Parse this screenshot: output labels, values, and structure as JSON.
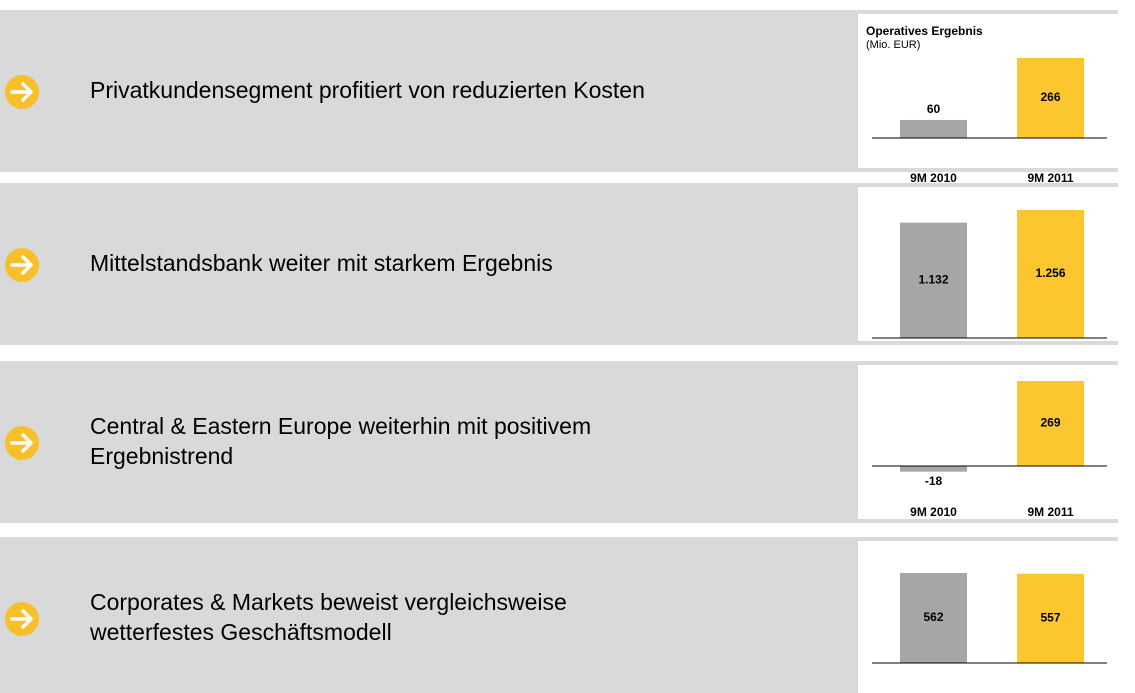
{
  "chart_data": [
    {
      "type": "bar",
      "headline": [
        "Privatkundensegment profitiert von reduzierten Kosten"
      ],
      "title": "Operatives Ergebnis",
      "subtitle": "(Mio. EUR)",
      "categories": [
        "9M 2010",
        "9M 2011"
      ],
      "values": [
        60,
        266
      ],
      "colors": [
        "#a6a6a6",
        "#fcc72e"
      ]
    },
    {
      "type": "bar",
      "headline": [
        "Mittelstandsbank weiter mit starkem Ergebnis"
      ],
      "categories": [
        "9M 2010",
        "9M 2011"
      ],
      "values": [
        1132,
        1256
      ],
      "value_labels": [
        "1.132",
        "1.256"
      ],
      "colors": [
        "#a6a6a6",
        "#fcc72e"
      ]
    },
    {
      "type": "bar",
      "headline": [
        "Central & Eastern Europe weiterhin mit positivem",
        "Ergebnistrend"
      ],
      "categories": [
        "9M 2010",
        "9M 2011"
      ],
      "values": [
        -18,
        269
      ],
      "colors": [
        "#a6a6a6",
        "#fcc72e"
      ]
    },
    {
      "type": "bar",
      "headline": [
        "Corporates & Markets beweist vergleichsweise",
        "wetterfestes Geschäftsmodell"
      ],
      "categories": [
        "9M 2010",
        "9M 2011"
      ],
      "values": [
        562,
        557
      ],
      "colors": [
        "#a6a6a6",
        "#fcc72e"
      ]
    }
  ]
}
